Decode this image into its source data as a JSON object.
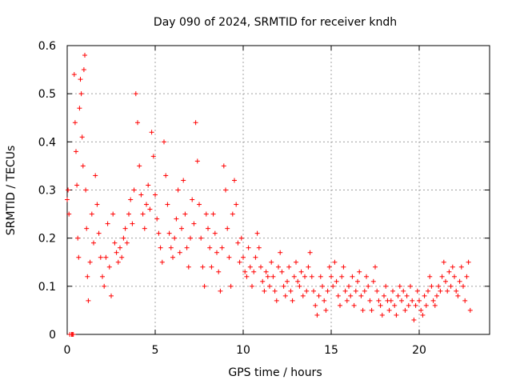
{
  "chart_data": {
    "type": "scatter",
    "title": "Day 090 of 2024, SRMTID for receiver kndh",
    "xlabel": "GPS time / hours",
    "ylabel": "SRMTID / TECUs",
    "xlim": [
      0,
      24
    ],
    "ylim": [
      0,
      0.6
    ],
    "x_ticks": [
      0,
      5,
      10,
      15,
      20
    ],
    "y_ticks": [
      0,
      0.1,
      0.2,
      0.3,
      0.4,
      0.5,
      0.6
    ],
    "x_tick_labels": [
      "0",
      "5",
      "10",
      "15",
      "20"
    ],
    "y_tick_labels": [
      "0",
      "0.1",
      "0.2",
      "0.3",
      "0.4",
      "0.5",
      "0.6"
    ],
    "grid": true,
    "marker": "plus",
    "color": "#ff0000",
    "series": [
      {
        "name": "SRMTID",
        "points": [
          [
            0.0,
            0.28
          ],
          [
            0.05,
            0.3
          ],
          [
            0.1,
            0.25
          ],
          [
            0.3,
            0.0
          ],
          [
            0.35,
            0.0
          ],
          [
            0.4,
            0.54
          ],
          [
            0.45,
            0.44
          ],
          [
            0.5,
            0.38
          ],
          [
            0.55,
            0.31
          ],
          [
            0.6,
            0.2
          ],
          [
            0.65,
            0.16
          ],
          [
            0.7,
            0.47
          ],
          [
            0.75,
            0.53
          ],
          [
            0.8,
            0.5
          ],
          [
            0.85,
            0.41
          ],
          [
            0.9,
            0.35
          ],
          [
            0.95,
            0.55
          ],
          [
            1.0,
            0.58
          ],
          [
            1.05,
            0.3
          ],
          [
            1.1,
            0.22
          ],
          [
            1.15,
            0.12
          ],
          [
            1.2,
            0.07
          ],
          [
            1.3,
            0.15
          ],
          [
            1.4,
            0.25
          ],
          [
            1.5,
            0.19
          ],
          [
            1.6,
            0.33
          ],
          [
            1.7,
            0.27
          ],
          [
            1.8,
            0.21
          ],
          [
            1.9,
            0.16
          ],
          [
            2.0,
            0.12
          ],
          [
            2.1,
            0.1
          ],
          [
            2.2,
            0.16
          ],
          [
            2.3,
            0.23
          ],
          [
            2.4,
            0.14
          ],
          [
            2.5,
            0.08
          ],
          [
            2.6,
            0.25
          ],
          [
            2.7,
            0.19
          ],
          [
            2.8,
            0.17
          ],
          [
            2.9,
            0.15
          ],
          [
            3.0,
            0.18
          ],
          [
            3.1,
            0.16
          ],
          [
            3.2,
            0.2
          ],
          [
            3.3,
            0.22
          ],
          [
            3.4,
            0.19
          ],
          [
            3.5,
            0.25
          ],
          [
            3.6,
            0.28
          ],
          [
            3.7,
            0.23
          ],
          [
            3.8,
            0.3
          ],
          [
            3.9,
            0.5
          ],
          [
            4.0,
            0.44
          ],
          [
            4.1,
            0.35
          ],
          [
            4.2,
            0.29
          ],
          [
            4.3,
            0.25
          ],
          [
            4.4,
            0.22
          ],
          [
            4.5,
            0.27
          ],
          [
            4.6,
            0.31
          ],
          [
            4.7,
            0.26
          ],
          [
            4.8,
            0.42
          ],
          [
            4.9,
            0.37
          ],
          [
            5.0,
            0.29
          ],
          [
            5.1,
            0.24
          ],
          [
            5.2,
            0.21
          ],
          [
            5.3,
            0.18
          ],
          [
            5.4,
            0.15
          ],
          [
            5.5,
            0.4
          ],
          [
            5.6,
            0.33
          ],
          [
            5.7,
            0.27
          ],
          [
            5.8,
            0.21
          ],
          [
            5.9,
            0.18
          ],
          [
            6.0,
            0.16
          ],
          [
            6.1,
            0.2
          ],
          [
            6.2,
            0.24
          ],
          [
            6.3,
            0.3
          ],
          [
            6.4,
            0.17
          ],
          [
            6.5,
            0.22
          ],
          [
            6.6,
            0.32
          ],
          [
            6.7,
            0.25
          ],
          [
            6.8,
            0.18
          ],
          [
            6.9,
            0.14
          ],
          [
            7.0,
            0.2
          ],
          [
            7.1,
            0.28
          ],
          [
            7.2,
            0.23
          ],
          [
            7.3,
            0.44
          ],
          [
            7.4,
            0.36
          ],
          [
            7.5,
            0.27
          ],
          [
            7.6,
            0.2
          ],
          [
            7.7,
            0.14
          ],
          [
            7.8,
            0.1
          ],
          [
            7.9,
            0.25
          ],
          [
            8.0,
            0.22
          ],
          [
            8.1,
            0.18
          ],
          [
            8.2,
            0.14
          ],
          [
            8.3,
            0.25
          ],
          [
            8.4,
            0.21
          ],
          [
            8.5,
            0.17
          ],
          [
            8.6,
            0.13
          ],
          [
            8.7,
            0.09
          ],
          [
            8.8,
            0.18
          ],
          [
            8.9,
            0.35
          ],
          [
            9.0,
            0.3
          ],
          [
            9.1,
            0.22
          ],
          [
            9.2,
            0.16
          ],
          [
            9.3,
            0.1
          ],
          [
            9.4,
            0.25
          ],
          [
            9.5,
            0.32
          ],
          [
            9.6,
            0.27
          ],
          [
            9.7,
            0.19
          ],
          [
            9.8,
            0.15
          ],
          [
            9.9,
            0.2
          ],
          [
            10.0,
            0.16
          ],
          [
            10.1,
            0.13
          ],
          [
            10.2,
            0.12
          ],
          [
            10.3,
            0.18
          ],
          [
            10.4,
            0.14
          ],
          [
            10.5,
            0.1
          ],
          [
            10.6,
            0.13
          ],
          [
            10.7,
            0.16
          ],
          [
            10.8,
            0.21
          ],
          [
            10.9,
            0.18
          ],
          [
            11.0,
            0.14
          ],
          [
            11.1,
            0.11
          ],
          [
            11.2,
            0.09
          ],
          [
            11.3,
            0.13
          ],
          [
            11.4,
            0.12
          ],
          [
            11.5,
            0.1
          ],
          [
            11.6,
            0.15
          ],
          [
            11.7,
            0.12
          ],
          [
            11.8,
            0.09
          ],
          [
            11.9,
            0.07
          ],
          [
            12.0,
            0.14
          ],
          [
            12.1,
            0.17
          ],
          [
            12.2,
            0.13
          ],
          [
            12.3,
            0.1
          ],
          [
            12.4,
            0.08
          ],
          [
            12.5,
            0.11
          ],
          [
            12.6,
            0.14
          ],
          [
            12.7,
            0.09
          ],
          [
            12.8,
            0.07
          ],
          [
            12.9,
            0.12
          ],
          [
            13.0,
            0.15
          ],
          [
            13.1,
            0.11
          ],
          [
            13.2,
            0.1
          ],
          [
            13.3,
            0.13
          ],
          [
            13.4,
            0.08
          ],
          [
            13.5,
            0.12
          ],
          [
            13.6,
            0.09
          ],
          [
            13.7,
            0.14
          ],
          [
            13.8,
            0.17
          ],
          [
            13.9,
            0.12
          ],
          [
            14.0,
            0.09
          ],
          [
            14.1,
            0.06
          ],
          [
            14.2,
            0.04
          ],
          [
            14.3,
            0.08
          ],
          [
            14.4,
            0.12
          ],
          [
            14.5,
            0.1
          ],
          [
            14.6,
            0.07
          ],
          [
            14.7,
            0.05
          ],
          [
            14.8,
            0.09
          ],
          [
            14.9,
            0.14
          ],
          [
            15.0,
            0.12
          ],
          [
            15.1,
            0.1
          ],
          [
            15.2,
            0.15
          ],
          [
            15.3,
            0.11
          ],
          [
            15.4,
            0.08
          ],
          [
            15.5,
            0.06
          ],
          [
            15.6,
            0.12
          ],
          [
            15.7,
            0.14
          ],
          [
            15.8,
            0.09
          ],
          [
            15.9,
            0.07
          ],
          [
            16.0,
            0.1
          ],
          [
            16.1,
            0.08
          ],
          [
            16.2,
            0.12
          ],
          [
            16.3,
            0.06
          ],
          [
            16.4,
            0.09
          ],
          [
            16.5,
            0.11
          ],
          [
            16.6,
            0.13
          ],
          [
            16.7,
            0.08
          ],
          [
            16.8,
            0.05
          ],
          [
            16.9,
            0.09
          ],
          [
            17.0,
            0.12
          ],
          [
            17.1,
            0.1
          ],
          [
            17.2,
            0.07
          ],
          [
            17.3,
            0.05
          ],
          [
            17.4,
            0.11
          ],
          [
            17.5,
            0.14
          ],
          [
            17.6,
            0.09
          ],
          [
            17.7,
            0.07
          ],
          [
            17.8,
            0.06
          ],
          [
            17.9,
            0.04
          ],
          [
            18.0,
            0.08
          ],
          [
            18.1,
            0.1
          ],
          [
            18.2,
            0.07
          ],
          [
            18.3,
            0.05
          ],
          [
            18.4,
            0.07
          ],
          [
            18.5,
            0.09
          ],
          [
            18.6,
            0.06
          ],
          [
            18.7,
            0.04
          ],
          [
            18.8,
            0.08
          ],
          [
            18.9,
            0.1
          ],
          [
            19.0,
            0.07
          ],
          [
            19.1,
            0.09
          ],
          [
            19.2,
            0.05
          ],
          [
            19.3,
            0.08
          ],
          [
            19.4,
            0.06
          ],
          [
            19.5,
            0.1
          ],
          [
            19.6,
            0.07
          ],
          [
            19.7,
            0.03
          ],
          [
            19.8,
            0.06
          ],
          [
            19.9,
            0.09
          ],
          [
            20.0,
            0.07
          ],
          [
            20.1,
            0.05
          ],
          [
            20.2,
            0.04
          ],
          [
            20.3,
            0.08
          ],
          [
            20.4,
            0.06
          ],
          [
            20.5,
            0.09
          ],
          [
            20.6,
            0.12
          ],
          [
            20.7,
            0.1
          ],
          [
            20.8,
            0.07
          ],
          [
            20.9,
            0.06
          ],
          [
            21.0,
            0.08
          ],
          [
            21.1,
            0.1
          ],
          [
            21.2,
            0.09
          ],
          [
            21.3,
            0.12
          ],
          [
            21.4,
            0.15
          ],
          [
            21.5,
            0.11
          ],
          [
            21.6,
            0.09
          ],
          [
            21.7,
            0.13
          ],
          [
            21.8,
            0.1
          ],
          [
            21.9,
            0.14
          ],
          [
            22.0,
            0.12
          ],
          [
            22.1,
            0.09
          ],
          [
            22.2,
            0.08
          ],
          [
            22.3,
            0.11
          ],
          [
            22.4,
            0.14
          ],
          [
            22.5,
            0.1
          ],
          [
            22.6,
            0.07
          ],
          [
            22.7,
            0.12
          ],
          [
            22.8,
            0.15
          ],
          [
            22.9,
            0.05
          ],
          [
            0.15,
            0.0
          ],
          [
            0.25,
            0.0
          ]
        ]
      }
    ]
  }
}
